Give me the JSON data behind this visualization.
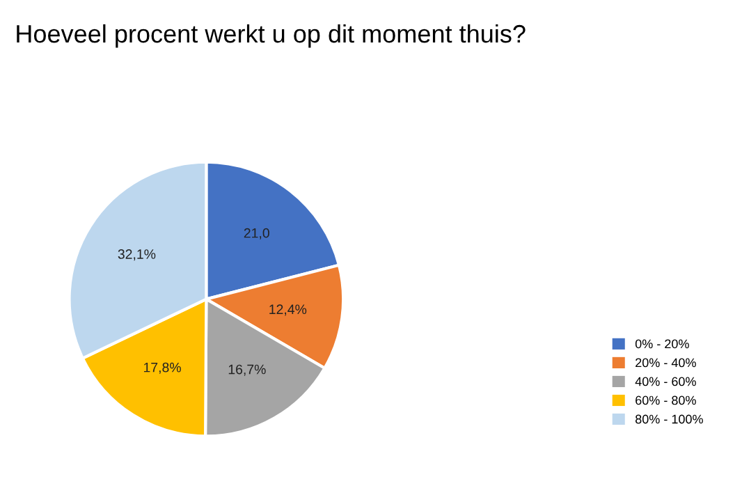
{
  "chart_data": {
    "type": "pie",
    "title": "Hoeveel procent werkt u op dit moment thuis?",
    "categories": [
      "0% - 20%",
      "20% - 40%",
      "40% - 60%",
      "60% - 80%",
      "80% - 100%"
    ],
    "values": [
      21.0,
      12.4,
      16.7,
      17.8,
      32.1
    ],
    "value_labels": [
      "21,0",
      "12,4%",
      "16,7%",
      "17,8%",
      "32,1%"
    ],
    "colors": [
      "#4472c4",
      "#ed7d31",
      "#a5a5a5",
      "#ffc000",
      "#bdd7ee"
    ],
    "legend": "right"
  }
}
